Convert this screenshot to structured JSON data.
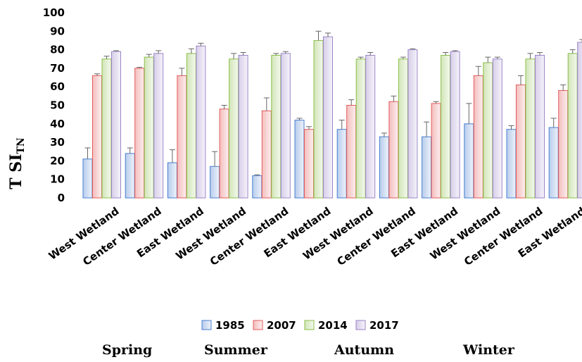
{
  "chart_data": {
    "type": "bar",
    "ylabel_main": "T SI",
    "ylabel_sub": "TN",
    "ylim": [
      0,
      100
    ],
    "yticks": [
      0,
      10,
      20,
      30,
      40,
      50,
      60,
      70,
      80,
      90,
      100
    ],
    "grid": false,
    "legend_position": "bottom",
    "categories": [
      "West Wetland",
      "Center Wetland",
      "East Wetland",
      "West Wetland",
      "Center Wetland",
      "East Wetland",
      "West Wetland",
      "Center Wetland",
      "East Wetland",
      "West Wetland",
      "Center Wetland",
      "East Wetland"
    ],
    "series": [
      {
        "name": "1985",
        "color": "#4a7fd0",
        "values": [
          21,
          24,
          19,
          17,
          12,
          42,
          37,
          33,
          33,
          40,
          37,
          38
        ],
        "errors": [
          6,
          3,
          7,
          8,
          0.5,
          1,
          5,
          2,
          8,
          11,
          2,
          5
        ]
      },
      {
        "name": "2007",
        "color": "#e35b5b",
        "values": [
          66,
          70,
          66,
          48,
          47,
          37,
          50,
          52,
          51,
          66,
          61,
          58
        ],
        "errors": [
          1,
          0.5,
          4,
          2,
          7,
          1.5,
          3,
          3,
          1,
          5,
          5,
          3
        ]
      },
      {
        "name": "2014",
        "color": "#8dbf4a",
        "values": [
          75,
          76,
          78,
          75,
          77,
          85,
          75,
          75,
          77,
          73,
          75,
          78
        ],
        "errors": [
          1.5,
          1.5,
          2.5,
          3,
          1,
          5,
          1,
          1,
          1.5,
          3,
          3,
          2
        ]
      },
      {
        "name": "2017",
        "color": "#9b85c8",
        "values": [
          79,
          78,
          82,
          77,
          78,
          87,
          77,
          80,
          79,
          75,
          77,
          84
        ],
        "errors": [
          0.5,
          1.5,
          1.5,
          1.5,
          1,
          2,
          1.5,
          0.5,
          0.5,
          1,
          1.5,
          1.5
        ]
      }
    ],
    "season_labels": [
      "Spring",
      "Summer",
      "Autumn",
      "Winter"
    ]
  }
}
